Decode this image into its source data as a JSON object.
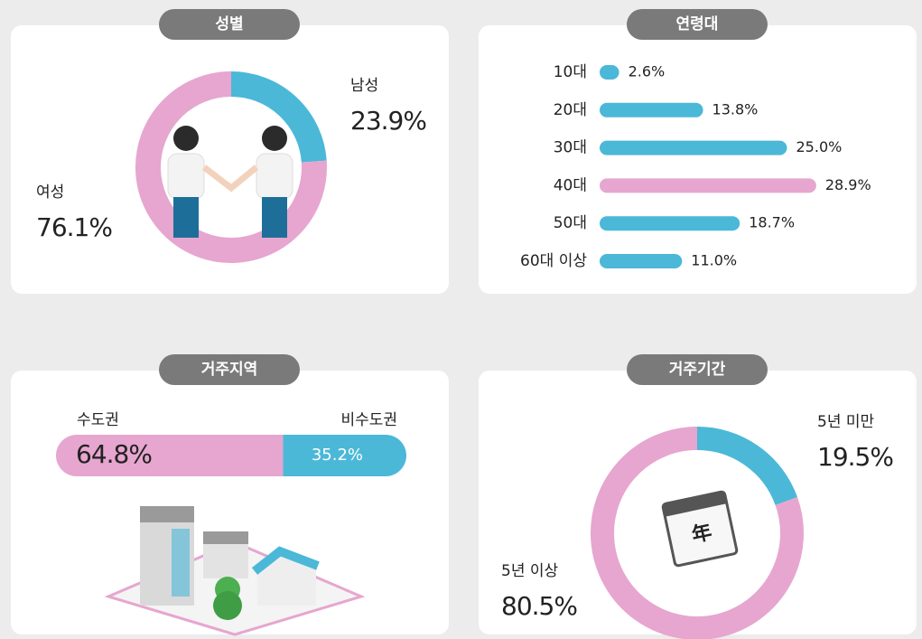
{
  "chart_data": [
    {
      "type": "pie",
      "title": "성별",
      "categories": [
        "남성",
        "여성"
      ],
      "values": [
        23.9,
        76.1
      ],
      "value_labels": [
        "23.9%",
        "76.1%"
      ],
      "colors": [
        "#4bb8d8",
        "#e6a6cf"
      ]
    },
    {
      "type": "bar",
      "orientation": "horizontal",
      "title": "연령대",
      "categories": [
        "10대",
        "20대",
        "30대",
        "40대",
        "50대",
        "60대 이상"
      ],
      "values": [
        2.6,
        13.8,
        25.0,
        28.9,
        18.7,
        11.0
      ],
      "value_labels": [
        "2.6%",
        "13.8%",
        "25.0%",
        "28.9%",
        "18.7%",
        "11.0%"
      ],
      "colors": [
        "#4bb8d8",
        "#4bb8d8",
        "#4bb8d8",
        "#e6a6cf",
        "#4bb8d8",
        "#4bb8d8"
      ]
    },
    {
      "type": "stacked_bar",
      "title": "거주지역",
      "categories": [
        "수도권",
        "비수도권"
      ],
      "values": [
        64.8,
        35.2
      ],
      "value_labels": [
        "64.8%",
        "35.2%"
      ],
      "colors": [
        "#e6a6cf",
        "#4bb8d8"
      ]
    },
    {
      "type": "pie",
      "title": "거주기간",
      "categories": [
        "5년 미만",
        "5년 이상"
      ],
      "values": [
        19.5,
        80.5
      ],
      "value_labels": [
        "19.5%",
        "80.5%"
      ],
      "colors": [
        "#4bb8d8",
        "#e6a6cf"
      ],
      "icon_label": "年"
    }
  ]
}
